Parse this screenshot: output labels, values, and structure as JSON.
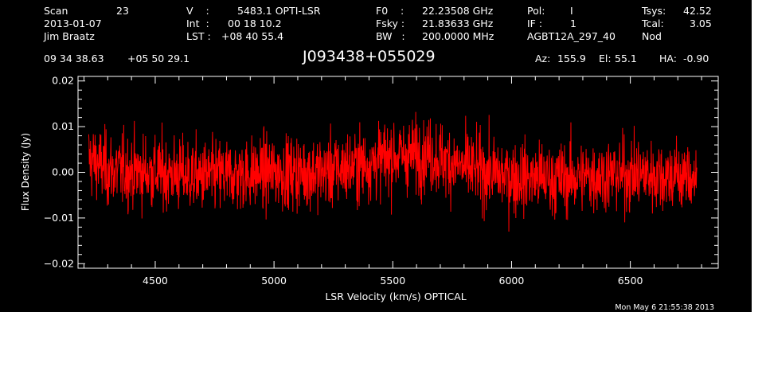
{
  "header": {
    "scan_label": "Scan",
    "scan_value": "23",
    "date": "2013-01-07",
    "observer": "Jim Braatz",
    "v_label": "V    :",
    "v_value": "5483.1 OPTI-LSR",
    "int_label": "Int  :",
    "int_value": "00 18 10.2",
    "lst_label": "LST :",
    "lst_value": "+08 40 55.4",
    "f0_label": "F0    :",
    "f0_value": "22.23508 GHz",
    "fsky_label": "Fsky :",
    "fsky_value": "21.83633 GHz",
    "bw_label": "BW   :",
    "bw_value": "200.0000 MHz",
    "pol_label": "Pol:",
    "pol_value": "I",
    "if_label": "IF :",
    "if_value": "1",
    "project": "AGBT12A_297_40",
    "tsys_label": "Tsys:",
    "tsys_value": "42.52",
    "tcal_label": "Tcal:",
    "tcal_value": "3.05",
    "proc": "Nod",
    "ra": "09 34 38.63",
    "dec": "+05 50 29.1",
    "source": "J093438+055029",
    "az_label": "Az:",
    "az_value": "155.9",
    "el_label": "El:",
    "el_value": "55.1",
    "ha_label": "HA:",
    "ha_value": "-0.90"
  },
  "timestamp": "Mon May  6 21:55:38 2013",
  "colors": {
    "background": "#000000",
    "axes": "#ffffff",
    "trace": "#ff0000",
    "page": "#ffffff"
  },
  "chart_data": {
    "type": "line",
    "xlabel": "LSR Velocity (km/s) OPTICAL",
    "ylabel": "Flux Density (Jy)",
    "xlim": [
      4175,
      6870
    ],
    "ylim": [
      -0.021,
      0.021
    ],
    "xticks": [
      4500,
      5000,
      5500,
      6000,
      6500
    ],
    "xtick_labels": [
      "4500",
      "5000",
      "5500",
      "6000",
      "6500"
    ],
    "yticks": [
      -0.02,
      -0.01,
      0.0,
      0.01,
      0.02
    ],
    "ytick_labels": [
      "−0.02",
      "−0.01",
      "0.00",
      "0.01",
      "0.02"
    ],
    "grid": false,
    "series": [
      {
        "x_range": [
          4220,
          6780
        ],
        "noise_rms": 0.004,
        "baseline": {
          "x": [
            4220,
            4300,
            4500,
            4700,
            5000,
            5200,
            5400,
            5500,
            5650,
            5800,
            6000,
            6200,
            6400,
            6600,
            6780
          ],
          "y": [
            0.003,
            0.0005,
            0.0,
            -0.001,
            0.0,
            0.0,
            0.002,
            0.0035,
            0.004,
            0.001,
            -0.001,
            -0.0015,
            -0.0005,
            -0.0005,
            -0.001
          ]
        }
      }
    ]
  }
}
